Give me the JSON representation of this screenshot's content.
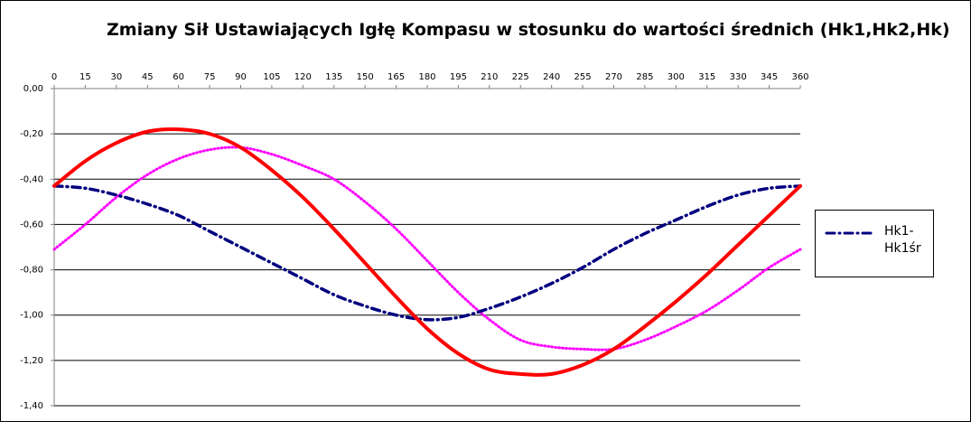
{
  "chart_data": {
    "type": "line",
    "title": "Zmiany Sił Ustawiających Igłę Kompasu w stosunku do wartości średnich (Hk1,Hk2,Hk)",
    "xlabel": "",
    "ylabel": "",
    "x": [
      0,
      15,
      30,
      45,
      60,
      75,
      90,
      105,
      120,
      135,
      150,
      165,
      180,
      195,
      210,
      225,
      240,
      255,
      270,
      285,
      300,
      315,
      330,
      345,
      360
    ],
    "x_tick_labels": [
      "0",
      "15",
      "30",
      "45",
      "60",
      "75",
      "90",
      "105",
      "120",
      "135",
      "150",
      "165",
      "180",
      "195",
      "210",
      "225",
      "240",
      "255",
      "270",
      "285",
      "300",
      "315",
      "330",
      "345",
      "360"
    ],
    "y_tick_labels": [
      "0,00",
      "-0,20",
      "-0,40",
      "-0,60",
      "-0,80",
      "-1,00",
      "-1,20",
      "-1,40"
    ],
    "y_ticks": [
      0,
      -0.2,
      -0.4,
      -0.6,
      -0.8,
      -1.0,
      -1.2,
      -1.4
    ],
    "xlim": [
      0,
      360
    ],
    "ylim": [
      -1.4,
      0
    ],
    "x_axis_position": "top",
    "grid": "horizontal",
    "legend_position": "right",
    "series": [
      {
        "name": "Hk1-Hk1śr",
        "color": "#000080",
        "style": "dash-dot",
        "in_legend": true,
        "values": [
          -0.43,
          -0.44,
          -0.47,
          -0.51,
          -0.56,
          -0.63,
          -0.7,
          -0.77,
          -0.84,
          -0.91,
          -0.96,
          -1.0,
          -1.02,
          -1.01,
          -0.97,
          -0.92,
          -0.86,
          -0.79,
          -0.71,
          -0.64,
          -0.58,
          -0.52,
          -0.47,
          -0.44,
          -0.43
        ]
      },
      {
        "name": "",
        "color": "#ff0000",
        "style": "solid",
        "in_legend": false,
        "values": [
          -0.43,
          -0.32,
          -0.24,
          -0.19,
          -0.18,
          -0.2,
          -0.26,
          -0.36,
          -0.48,
          -0.62,
          -0.77,
          -0.92,
          -1.06,
          -1.17,
          -1.24,
          -1.26,
          -1.26,
          -1.22,
          -1.15,
          -1.05,
          -0.94,
          -0.82,
          -0.69,
          -0.56,
          -0.43
        ]
      },
      {
        "name": "",
        "color": "#ff00ff",
        "style": "dotted",
        "in_legend": false,
        "values": [
          -0.71,
          -0.6,
          -0.48,
          -0.38,
          -0.31,
          -0.27,
          -0.26,
          -0.29,
          -0.34,
          -0.4,
          -0.5,
          -0.62,
          -0.76,
          -0.9,
          -1.02,
          -1.11,
          -1.14,
          -1.15,
          -1.15,
          -1.11,
          -1.05,
          -0.98,
          -0.89,
          -0.79,
          -0.71
        ]
      }
    ]
  }
}
